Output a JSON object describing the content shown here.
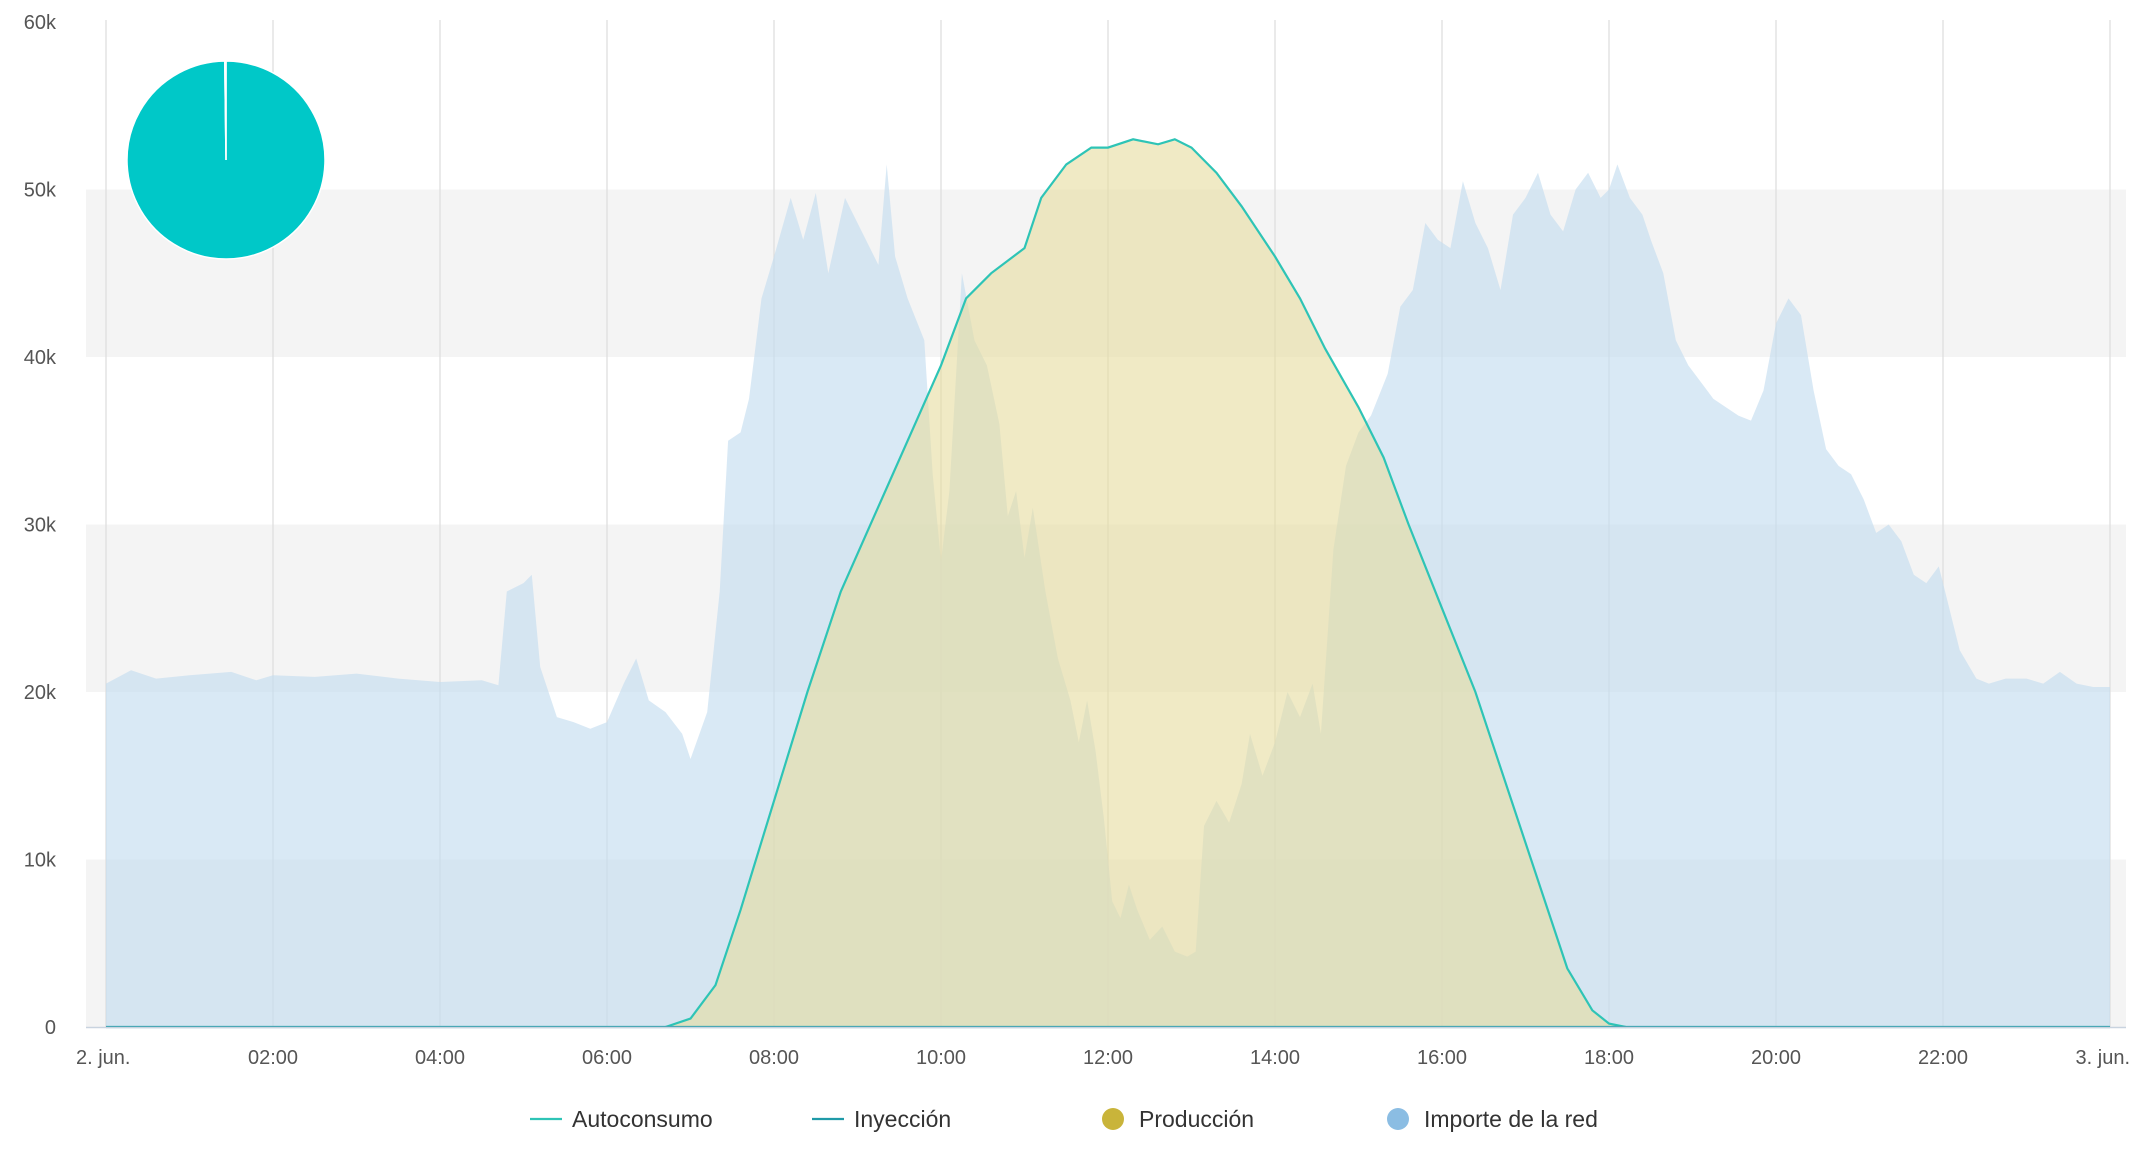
{
  "chart_data": {
    "type": "area",
    "x_axis": {
      "type": "datetime",
      "min": "2. jun. 00:00",
      "max": "3. jun. 00:00",
      "ticks": [
        "2. jun.",
        "02:00",
        "04:00",
        "06:00",
        "08:00",
        "10:00",
        "12:00",
        "14:00",
        "16:00",
        "18:00",
        "20:00",
        "22:00",
        "3. jun."
      ],
      "tick_hours": [
        0,
        2,
        4,
        6,
        8,
        10,
        12,
        14,
        16,
        18,
        20,
        22,
        24
      ]
    },
    "y_axis": {
      "min": 0,
      "max": 60000,
      "ticks": [
        0,
        10000,
        20000,
        30000,
        40000,
        50000,
        60000
      ],
      "tick_labels": [
        "0",
        "10k",
        "20k",
        "30k",
        "40k",
        "50k",
        "60k"
      ],
      "alternate_bands": true
    },
    "legend": {
      "position": "bottom-center",
      "items": [
        {
          "label": "Autoconsumo",
          "symbol": "line",
          "color": "#2ec4b6"
        },
        {
          "label": "Inyección",
          "symbol": "line",
          "color": "#1f9aa8"
        },
        {
          "label": "Producción",
          "symbol": "circle",
          "color": "#c9b43a"
        },
        {
          "label": "Importe de la red",
          "symbol": "circle",
          "color": "#8bbde3"
        }
      ]
    },
    "series": [
      {
        "name": "Importe de la red",
        "kind": "area",
        "fill": "#c5ddef",
        "fill_opacity": 0.65,
        "points": [
          [
            0,
            20500
          ],
          [
            0.3,
            21300
          ],
          [
            0.6,
            20800
          ],
          [
            1,
            21000
          ],
          [
            1.5,
            21200
          ],
          [
            1.8,
            20700
          ],
          [
            2,
            21000
          ],
          [
            2.5,
            20900
          ],
          [
            3,
            21100
          ],
          [
            3.5,
            20800
          ],
          [
            4,
            20600
          ],
          [
            4.5,
            20700
          ],
          [
            4.7,
            20400
          ],
          [
            4.8,
            26000
          ],
          [
            5,
            26500
          ],
          [
            5.1,
            27000
          ],
          [
            5.2,
            21500
          ],
          [
            5.4,
            18500
          ],
          [
            5.6,
            18200
          ],
          [
            5.8,
            17800
          ],
          [
            6,
            18200
          ],
          [
            6.2,
            20500
          ],
          [
            6.35,
            22000
          ],
          [
            6.5,
            19500
          ],
          [
            6.7,
            18800
          ],
          [
            6.9,
            17500
          ],
          [
            7,
            16000
          ],
          [
            7.2,
            18800
          ],
          [
            7.35,
            26000
          ],
          [
            7.45,
            35000
          ],
          [
            7.6,
            35500
          ],
          [
            7.7,
            37500
          ],
          [
            7.85,
            43500
          ],
          [
            8.0,
            46000
          ],
          [
            8.2,
            49500
          ],
          [
            8.35,
            47000
          ],
          [
            8.5,
            49800
          ],
          [
            8.65,
            45000
          ],
          [
            8.85,
            49500
          ],
          [
            9.05,
            47500
          ],
          [
            9.25,
            45500
          ],
          [
            9.35,
            51500
          ],
          [
            9.45,
            46000
          ],
          [
            9.6,
            43500
          ],
          [
            9.8,
            41000
          ],
          [
            9.9,
            33000
          ],
          [
            10.0,
            27800
          ],
          [
            10.1,
            32000
          ],
          [
            10.25,
            45000
          ],
          [
            10.4,
            41000
          ],
          [
            10.55,
            39500
          ],
          [
            10.7,
            36000
          ],
          [
            10.8,
            30500
          ],
          [
            10.9,
            32000
          ],
          [
            11.0,
            28000
          ],
          [
            11.1,
            31000
          ],
          [
            11.25,
            26000
          ],
          [
            11.4,
            22000
          ],
          [
            11.55,
            19500
          ],
          [
            11.65,
            17000
          ],
          [
            11.75,
            19500
          ],
          [
            11.85,
            16500
          ],
          [
            11.95,
            12500
          ],
          [
            12.05,
            7500
          ],
          [
            12.15,
            6500
          ],
          [
            12.25,
            8500
          ],
          [
            12.35,
            7000
          ],
          [
            12.5,
            5200
          ],
          [
            12.65,
            6000
          ],
          [
            12.8,
            4500
          ],
          [
            12.95,
            4200
          ],
          [
            13.05,
            4500
          ],
          [
            13.15,
            12000
          ],
          [
            13.3,
            13500
          ],
          [
            13.45,
            12200
          ],
          [
            13.6,
            14500
          ],
          [
            13.7,
            17500
          ],
          [
            13.85,
            15000
          ],
          [
            14.0,
            17000
          ],
          [
            14.15,
            20000
          ],
          [
            14.3,
            18500
          ],
          [
            14.45,
            20500
          ],
          [
            14.55,
            17500
          ],
          [
            14.7,
            28500
          ],
          [
            14.85,
            33500
          ],
          [
            15.0,
            35500
          ],
          [
            15.15,
            36500
          ],
          [
            15.35,
            39000
          ],
          [
            15.5,
            43000
          ],
          [
            15.65,
            44000
          ],
          [
            15.8,
            48000
          ],
          [
            15.95,
            47000
          ],
          [
            16.1,
            46500
          ],
          [
            16.25,
            50500
          ],
          [
            16.4,
            48000
          ],
          [
            16.55,
            46500
          ],
          [
            16.7,
            44000
          ],
          [
            16.85,
            48500
          ],
          [
            17.0,
            49500
          ],
          [
            17.15,
            51000
          ],
          [
            17.3,
            48500
          ],
          [
            17.45,
            47500
          ],
          [
            17.6,
            50000
          ],
          [
            17.75,
            51000
          ],
          [
            17.9,
            49500
          ],
          [
            18.0,
            50000
          ],
          [
            18.1,
            51500
          ],
          [
            18.25,
            49500
          ],
          [
            18.4,
            48500
          ],
          [
            18.5,
            47000
          ],
          [
            18.65,
            45000
          ],
          [
            18.8,
            41000
          ],
          [
            18.95,
            39500
          ],
          [
            19.1,
            38500
          ],
          [
            19.25,
            37500
          ],
          [
            19.4,
            37000
          ],
          [
            19.55,
            36500
          ],
          [
            19.7,
            36200
          ],
          [
            19.85,
            38000
          ],
          [
            20.0,
            42000
          ],
          [
            20.15,
            43500
          ],
          [
            20.3,
            42500
          ],
          [
            20.45,
            38000
          ],
          [
            20.6,
            34500
          ],
          [
            20.75,
            33500
          ],
          [
            20.9,
            33000
          ],
          [
            21.05,
            31500
          ],
          [
            21.2,
            29500
          ],
          [
            21.35,
            30000
          ],
          [
            21.5,
            29000
          ],
          [
            21.65,
            27000
          ],
          [
            21.8,
            26500
          ],
          [
            21.95,
            27500
          ],
          [
            22.05,
            25500
          ],
          [
            22.2,
            22500
          ],
          [
            22.4,
            20800
          ],
          [
            22.55,
            20500
          ],
          [
            22.75,
            20800
          ],
          [
            23.0,
            20800
          ],
          [
            23.2,
            20500
          ],
          [
            23.4,
            21200
          ],
          [
            23.6,
            20500
          ],
          [
            23.8,
            20300
          ],
          [
            24,
            20300
          ]
        ]
      },
      {
        "name": "Producción",
        "kind": "area",
        "fill": "#e6dc9e",
        "fill_opacity": 0.6,
        "points": [
          [
            6.7,
            0
          ],
          [
            7.0,
            500
          ],
          [
            7.3,
            2500
          ],
          [
            7.6,
            7000
          ],
          [
            8.0,
            13500
          ],
          [
            8.4,
            20000
          ],
          [
            8.8,
            26000
          ],
          [
            9.2,
            30500
          ],
          [
            9.6,
            35000
          ],
          [
            10.0,
            39500
          ],
          [
            10.3,
            43500
          ],
          [
            10.6,
            45000
          ],
          [
            11.0,
            46500
          ],
          [
            11.2,
            49500
          ],
          [
            11.5,
            51500
          ],
          [
            11.8,
            52500
          ],
          [
            12.0,
            52500
          ],
          [
            12.3,
            53000
          ],
          [
            12.6,
            52700
          ],
          [
            12.8,
            53000
          ],
          [
            13.0,
            52500
          ],
          [
            13.3,
            51000
          ],
          [
            13.6,
            49000
          ],
          [
            14.0,
            46000
          ],
          [
            14.3,
            43500
          ],
          [
            14.6,
            40500
          ],
          [
            15.0,
            37000
          ],
          [
            15.3,
            34000
          ],
          [
            15.6,
            30000
          ],
          [
            16.0,
            25000
          ],
          [
            16.4,
            20000
          ],
          [
            16.8,
            14000
          ],
          [
            17.2,
            8000
          ],
          [
            17.5,
            3500
          ],
          [
            17.8,
            1000
          ],
          [
            18.0,
            200
          ],
          [
            18.2,
            0
          ]
        ]
      },
      {
        "name": "Autoconsumo",
        "kind": "line",
        "stroke": "#2ec4b6",
        "points": [
          [
            6.7,
            0
          ],
          [
            7.0,
            500
          ],
          [
            7.3,
            2500
          ],
          [
            7.6,
            7000
          ],
          [
            8.0,
            13500
          ],
          [
            8.4,
            20000
          ],
          [
            8.8,
            26000
          ],
          [
            9.2,
            30500
          ],
          [
            9.6,
            35000
          ],
          [
            10.0,
            39500
          ],
          [
            10.3,
            43500
          ],
          [
            10.6,
            45000
          ],
          [
            11.0,
            46500
          ],
          [
            11.2,
            49500
          ],
          [
            11.5,
            51500
          ],
          [
            11.8,
            52500
          ],
          [
            12.0,
            52500
          ],
          [
            12.3,
            53000
          ],
          [
            12.6,
            52700
          ],
          [
            12.8,
            53000
          ],
          [
            13.0,
            52500
          ],
          [
            13.3,
            51000
          ],
          [
            13.6,
            49000
          ],
          [
            14.0,
            46000
          ],
          [
            14.3,
            43500
          ],
          [
            14.6,
            40500
          ],
          [
            15.0,
            37000
          ],
          [
            15.3,
            34000
          ],
          [
            15.6,
            30000
          ],
          [
            16.0,
            25000
          ],
          [
            16.4,
            20000
          ],
          [
            16.8,
            14000
          ],
          [
            17.2,
            8000
          ],
          [
            17.5,
            3500
          ],
          [
            17.8,
            1000
          ],
          [
            18.0,
            200
          ],
          [
            18.2,
            0
          ]
        ]
      },
      {
        "name": "Inyección",
        "kind": "line",
        "stroke": "#1f9aa8",
        "points": [
          [
            0,
            0
          ],
          [
            24,
            0
          ]
        ]
      }
    ],
    "pie": {
      "type": "pie",
      "color": "#00c8c8",
      "slices": [
        {
          "label": "Autoconsumo",
          "value": 99.8,
          "color": "#00c8c8"
        },
        {
          "label": "Inyección",
          "value": 0.2,
          "color": "#ffffff"
        }
      ]
    }
  }
}
